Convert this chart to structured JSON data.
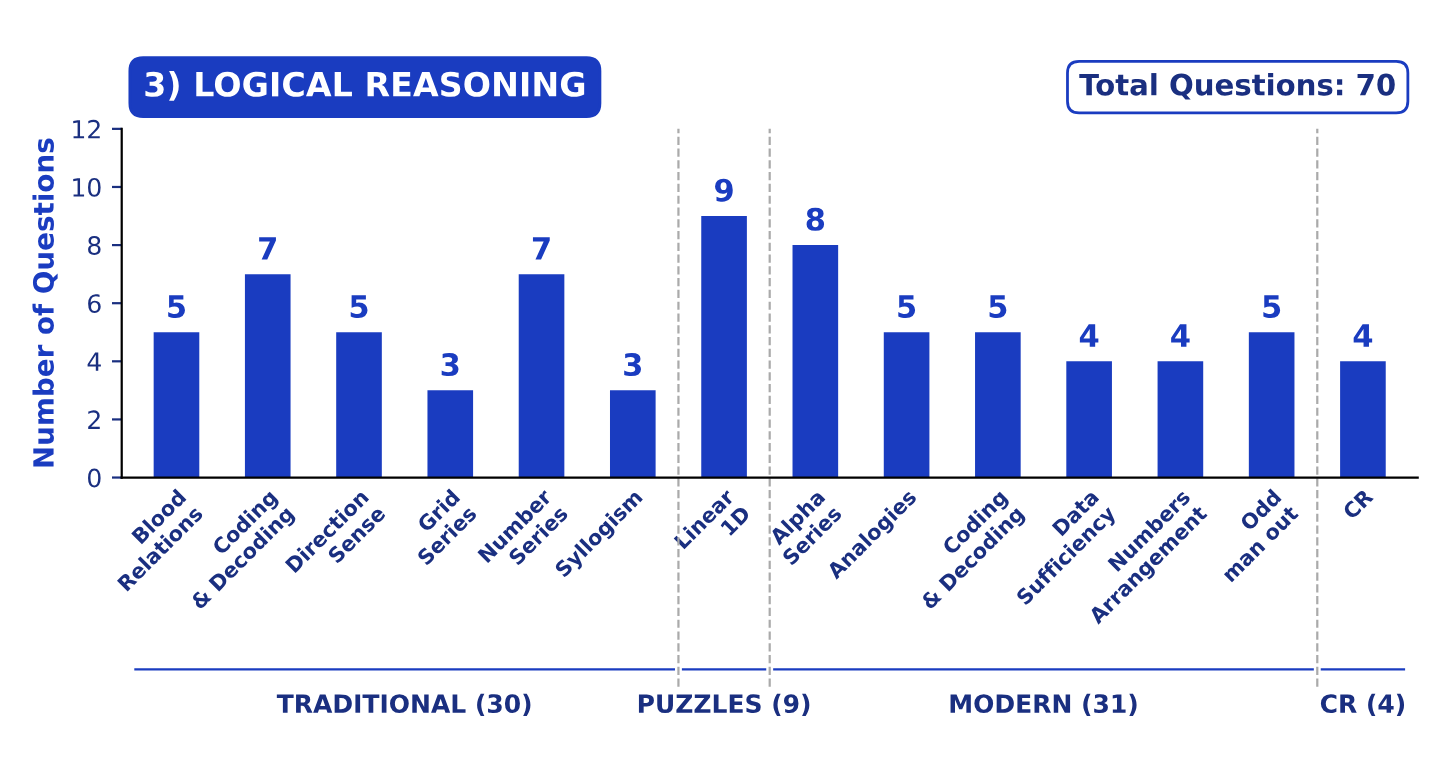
{
  "chart_data": {
    "type": "bar",
    "title": "3) LOGICAL REASONING",
    "ylabel": "Number of Questions",
    "annotations": [
      "Total Questions: 70",
      "TRADITIONAL (30)",
      "PUZZLES (9)",
      "MODERN (31)",
      "CR (4)"
    ],
    "categories": [
      "Blood Relations",
      "Coding & Decoding",
      "Direction Sense",
      "Grid Series",
      "Number Series",
      "Syllogism",
      "Linear 1D",
      "Alpha Series",
      "Analogies",
      "Coding & Decoding",
      "Data Sufficiency",
      "Numbers Arrangement",
      "Odd man out",
      "CR"
    ],
    "values": [
      5,
      7,
      5,
      3,
      7,
      3,
      9,
      8,
      5,
      5,
      4,
      4,
      5,
      4
    ],
    "color": "#1a3cc0",
    "data_labels": true,
    "ylim": [
      0,
      12
    ],
    "yticks": [
      0,
      2,
      4,
      6,
      8,
      10,
      12
    ]
  }
}
